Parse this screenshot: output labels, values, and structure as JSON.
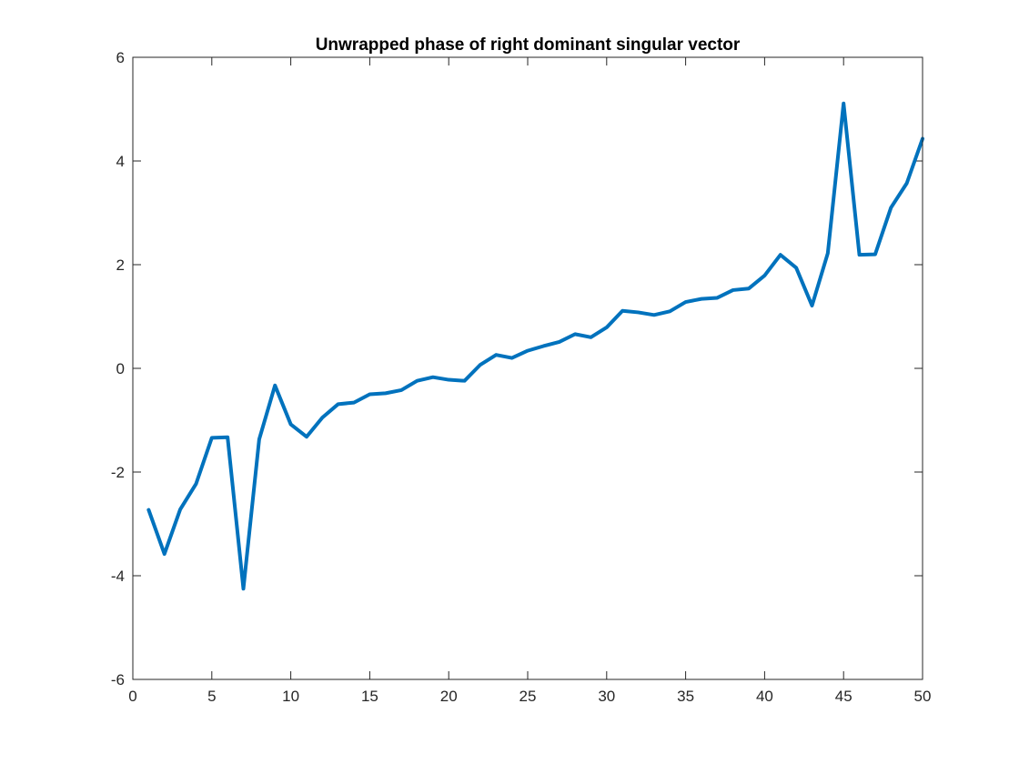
{
  "chart_data": {
    "type": "line",
    "title": "Unwrapped phase of right dominant singular vector",
    "xlabel": "",
    "ylabel": "",
    "xlim": [
      0,
      50
    ],
    "ylim": [
      -6,
      6
    ],
    "xticks": [
      0,
      5,
      10,
      15,
      20,
      25,
      30,
      35,
      40,
      45,
      50
    ],
    "yticks": [
      -6,
      -4,
      -2,
      0,
      2,
      4,
      6
    ],
    "xtick_labels": [
      "0",
      "5",
      "10",
      "15",
      "20",
      "25",
      "30",
      "35",
      "40",
      "45",
      "50"
    ],
    "ytick_labels": [
      "-6",
      "-4",
      "-2",
      "0",
      "2",
      "4",
      "6"
    ],
    "grid": false,
    "box": true,
    "series": [
      {
        "color": "#0072bd",
        "x": [
          1,
          2,
          3,
          4,
          5,
          6,
          7,
          8,
          9,
          10,
          11,
          12,
          13,
          14,
          15,
          16,
          17,
          18,
          19,
          20,
          21,
          22,
          23,
          24,
          25,
          26,
          27,
          28,
          29,
          30,
          31,
          32,
          33,
          34,
          35,
          36,
          37,
          38,
          39,
          40,
          41,
          42,
          43,
          44,
          45,
          46,
          47,
          48,
          49,
          50
        ],
        "y": [
          -2.73,
          -3.58,
          -2.72,
          -2.23,
          -1.34,
          -1.33,
          -4.25,
          -1.37,
          -0.33,
          -1.08,
          -1.32,
          -0.95,
          -0.69,
          -0.66,
          -0.5,
          -0.48,
          -0.42,
          -0.24,
          -0.17,
          -0.22,
          -0.24,
          0.07,
          0.26,
          0.2,
          0.34,
          0.43,
          0.51,
          0.66,
          0.6,
          0.79,
          1.11,
          1.08,
          1.03,
          1.1,
          1.28,
          1.34,
          1.36,
          1.51,
          1.54,
          1.79,
          2.19,
          1.94,
          1.21,
          2.22,
          5.11,
          2.19,
          2.2,
          3.1,
          3.57,
          4.43
        ]
      }
    ]
  }
}
